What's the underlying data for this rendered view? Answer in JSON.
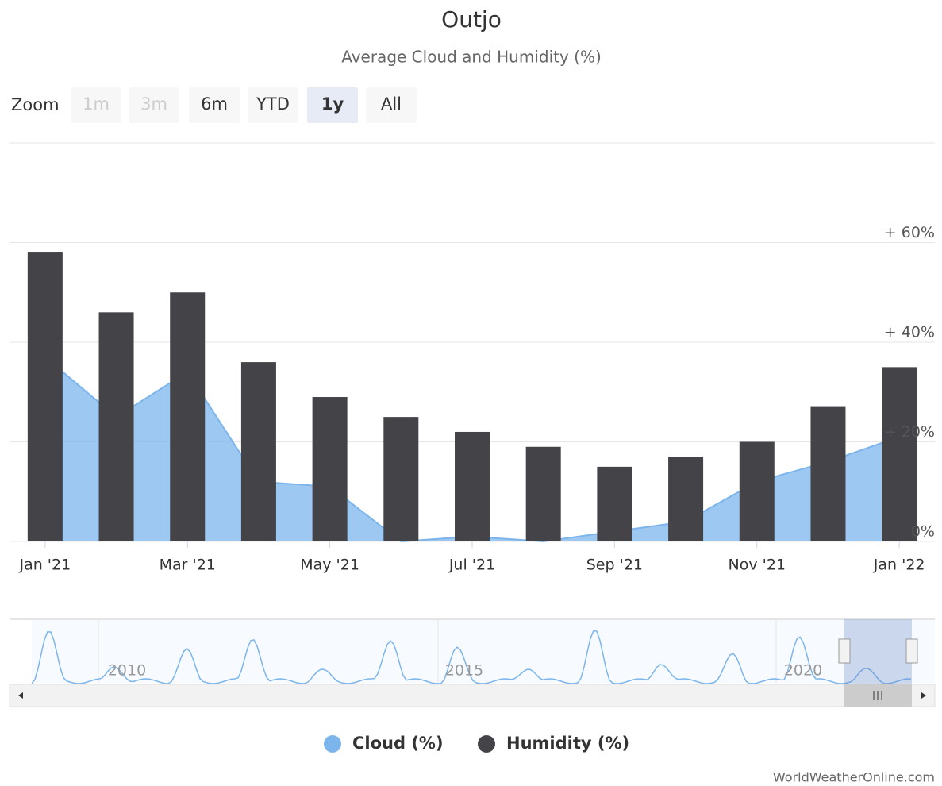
{
  "chart_data": {
    "type": "combo",
    "title": "Outjo",
    "subtitle": "Average Cloud and Humidity (%)",
    "categories": [
      "Jan '21",
      null,
      "Mar '21",
      null,
      "May '21",
      null,
      "Jul '21",
      null,
      "Sep '21",
      null,
      "Nov '21",
      null,
      "Jan '22"
    ],
    "series": [
      {
        "name": "Cloud (%)",
        "type": "area",
        "color": "#7cb5ec",
        "values": [
          37,
          25,
          34,
          12,
          11,
          0,
          1,
          0,
          2,
          4,
          12,
          16,
          21
        ]
      },
      {
        "name": "Humidity (%)",
        "type": "column",
        "color": "#434348",
        "values": [
          58,
          46,
          50,
          36,
          29,
          25,
          22,
          19,
          15,
          17,
          20,
          27,
          35
        ]
      }
    ],
    "ylim": [
      0,
      80
    ],
    "yticks": [
      {
        "value": 0,
        "label": "0%"
      },
      {
        "value": 20,
        "label": "+ 20%"
      },
      {
        "value": 40,
        "label": "+ 40%"
      },
      {
        "value": 60,
        "label": "+ 60%"
      }
    ],
    "grid": true,
    "zoom": {
      "label": "Zoom",
      "buttons": [
        "1m",
        "3m",
        "6m",
        "YTD",
        "1y",
        "All"
      ],
      "disabled": [
        0,
        1
      ],
      "selected": 4
    },
    "navigator": {
      "labels": [
        "2010",
        "2015",
        "2020"
      ]
    },
    "credit": "WorldWeatherOnline.com"
  }
}
